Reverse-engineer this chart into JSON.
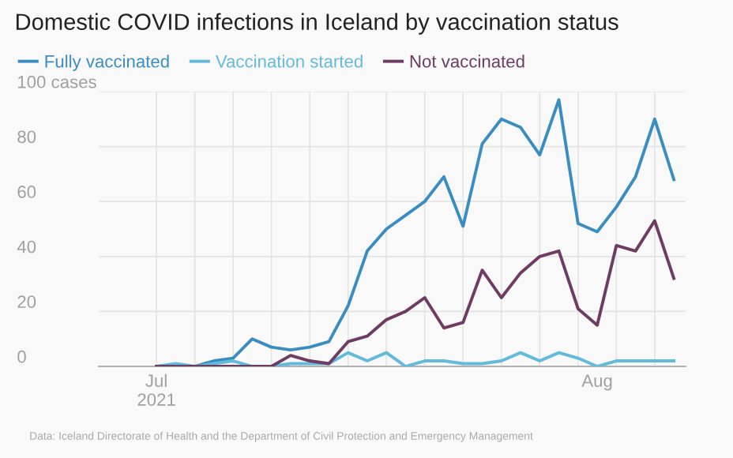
{
  "chart_data": {
    "type": "line",
    "title": "Domestic COVID infections in Iceland by vaccination status",
    "categories": [
      "Jul\n2021",
      null,
      null,
      null,
      null,
      null,
      null,
      null,
      null,
      null,
      null,
      null,
      null,
      null,
      null,
      null,
      null,
      null,
      null,
      null,
      null,
      null,
      null,
      "Aug",
      null,
      null,
      null,
      null
    ],
    "series": [
      {
        "name": "Fully vaccinated",
        "color": "#3a8dc0",
        "values": [
          0,
          0,
          0,
          2,
          3,
          10,
          7,
          6,
          7,
          9,
          22,
          42,
          50,
          55,
          60,
          69,
          51,
          81,
          90,
          87,
          77,
          97,
          52,
          49,
          58,
          69,
          90,
          68
        ]
      },
      {
        "name": "Vaccination started",
        "color": "#63bada",
        "values": [
          0,
          1,
          0,
          1,
          2,
          0,
          0,
          1,
          1,
          1,
          5,
          2,
          5,
          0,
          2,
          2,
          1,
          1,
          2,
          5,
          2,
          5,
          3,
          0,
          2,
          2,
          2,
          2
        ]
      },
      {
        "name": "Not vaccinated",
        "color": "#6e3b62",
        "values": [
          0,
          0,
          0,
          0,
          0,
          0,
          0,
          4,
          2,
          1,
          9,
          11,
          17,
          20,
          25,
          14,
          16,
          35,
          25,
          34,
          40,
          42,
          21,
          15,
          44,
          42,
          53,
          32
        ]
      }
    ],
    "ylim": [
      0,
      100
    ],
    "yticks": [
      0,
      20,
      40,
      60,
      80,
      {
        "value": 100,
        "label": "100 cases"
      }
    ],
    "grid": true,
    "legend": "top left",
    "marker": "none",
    "line_style": "solid",
    "annotations": [
      "Data: Iceland Directorate of Health and the Department of Civil Protection and Emergency Management"
    ]
  }
}
